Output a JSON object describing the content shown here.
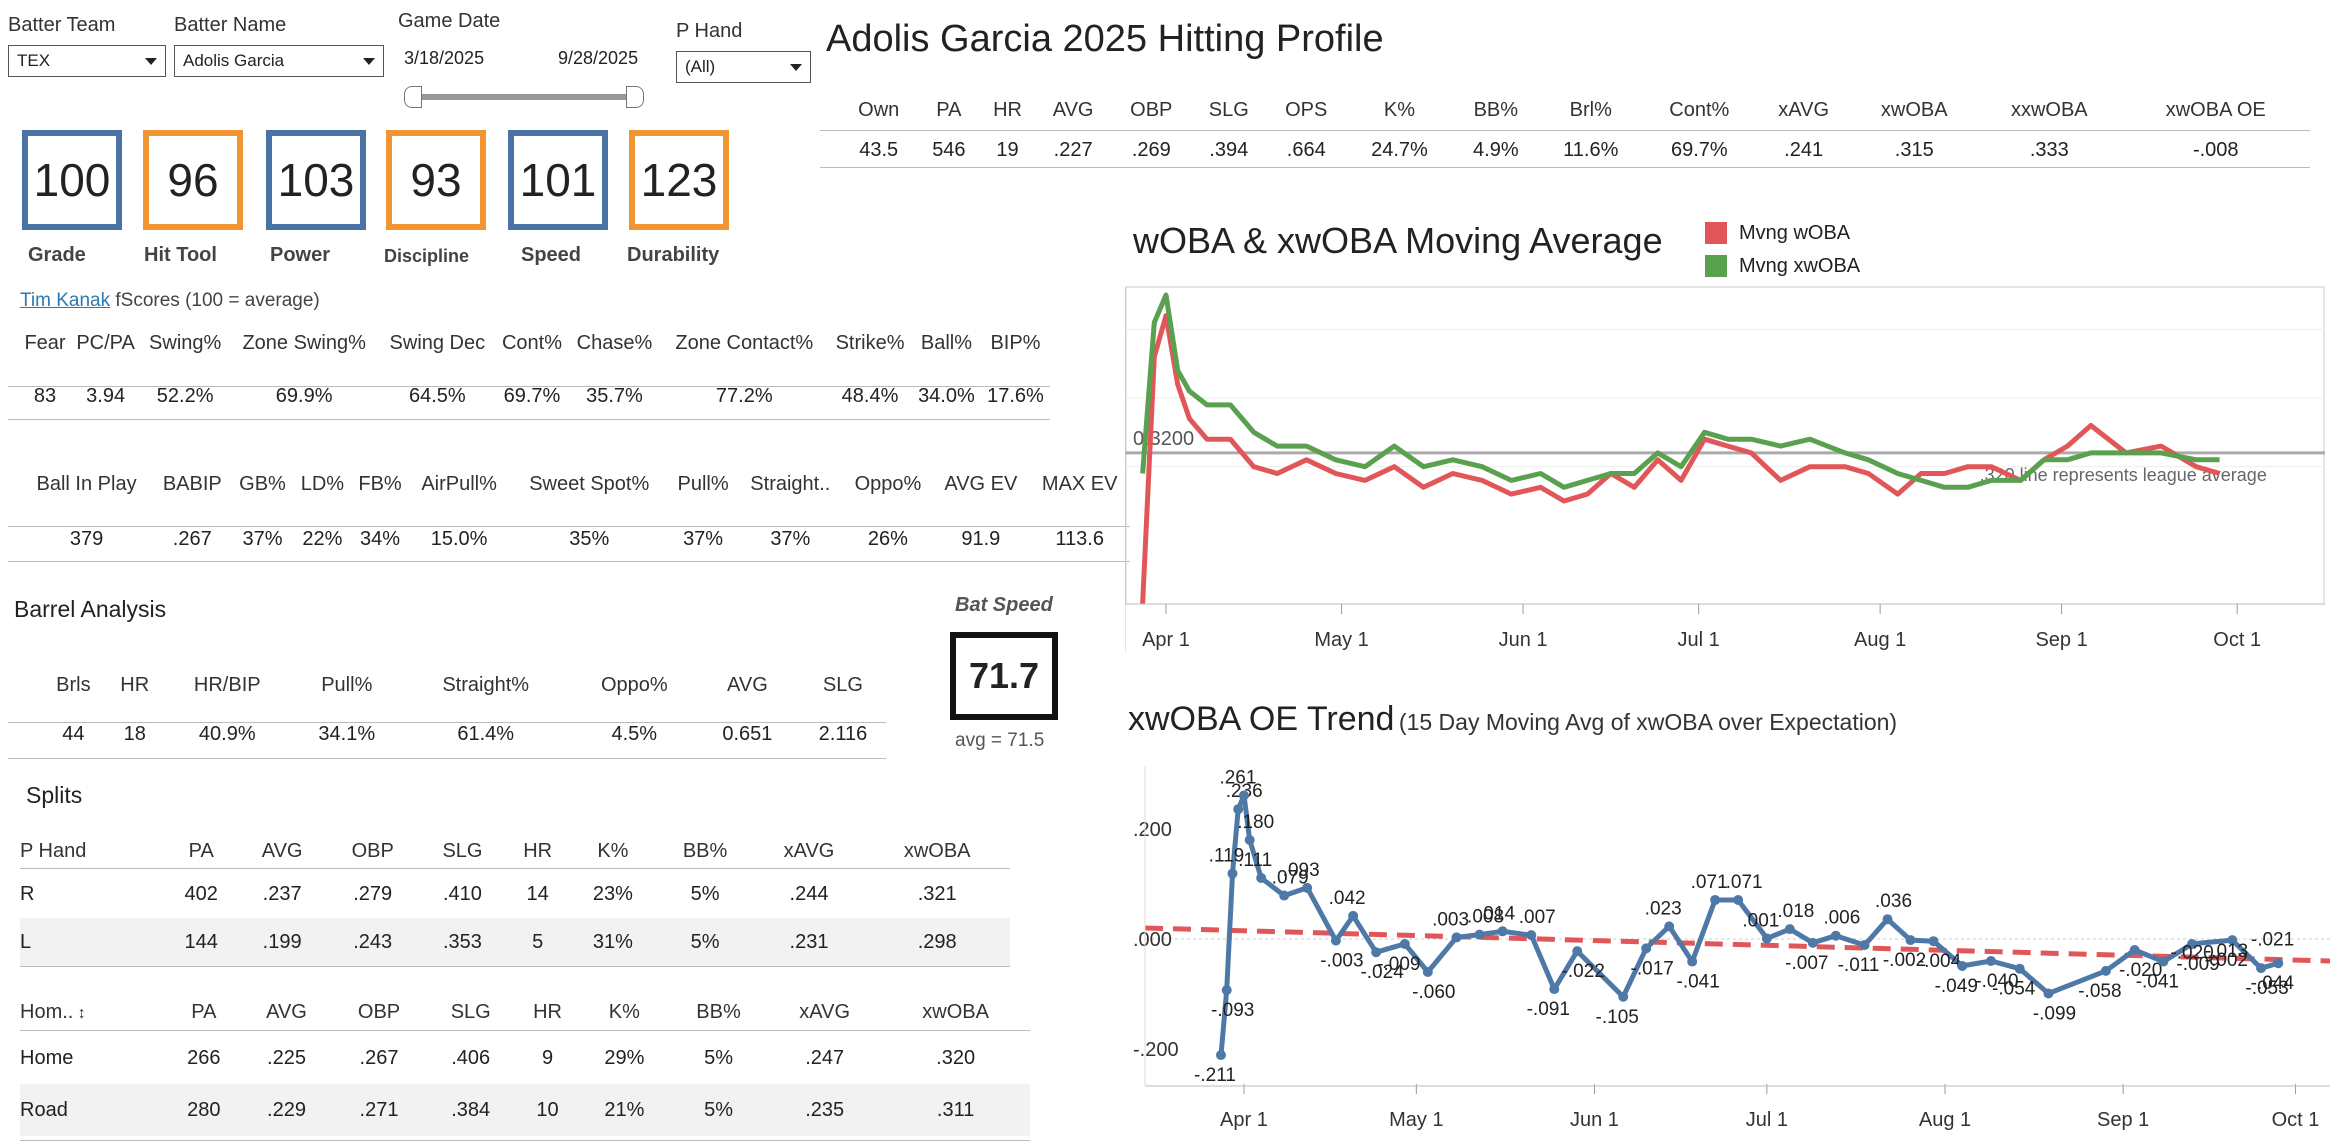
{
  "filters": {
    "batter_team_label": "Batter Team",
    "batter_team_value": "TEX",
    "batter_name_label": "Batter Name",
    "batter_name_value": "Adolis Garcia",
    "game_date_label": "Game Date",
    "date_start": "3/18/2025",
    "date_end": "9/28/2025",
    "p_hand_label": "P Hand",
    "p_hand_value": "(All)"
  },
  "grades": [
    {
      "value": "100",
      "label": "Grade",
      "color": "#4a72a4"
    },
    {
      "value": "96",
      "label": "Hit Tool",
      "color": "#f19434"
    },
    {
      "value": "103",
      "label": "Power",
      "color": "#4a72a4"
    },
    {
      "value": "93",
      "label": "Discipline",
      "color": "#f19434"
    },
    {
      "value": "101",
      "label": "Speed",
      "color": "#4a72a4"
    },
    {
      "value": "123",
      "label": "Durability",
      "color": "#f19434"
    }
  ],
  "attribution": {
    "link": "Tim Kanak",
    "text": "fScores (100 = average)"
  },
  "plate_discipline": {
    "headers": [
      "Fear",
      "PC/PA",
      "Swing%",
      "Zone Swing%",
      "Swing Dec",
      "Cont%",
      "Chase%",
      "Zone Contact%",
      "Strike%",
      "Ball%",
      "BIP%"
    ],
    "values": [
      "83",
      "3.94",
      "52.2%",
      "69.9%",
      "64.5%",
      "69.7%",
      "35.7%",
      "77.2%",
      "48.4%",
      "34.0%",
      "17.6%"
    ]
  },
  "batted_ball": {
    "headers": [
      "Ball In Play",
      "BABIP",
      "GB%",
      "LD%",
      "FB%",
      "AirPull%",
      "Sweet Spot%",
      "Pull%",
      "Straight..",
      "Oppo%",
      "AVG EV",
      "MAX EV"
    ],
    "values": [
      "379",
      ".267",
      "37%",
      "22%",
      "34%",
      "15.0%",
      "35%",
      "37%",
      "37%",
      "26%",
      "91.9",
      "113.6"
    ]
  },
  "barrel": {
    "title": "Barrel Analysis",
    "headers": [
      "Brls",
      "HR",
      "HR/BIP",
      "Pull%",
      "Straight%",
      "Oppo%",
      "AVG",
      "SLG"
    ],
    "values": [
      "44",
      "18",
      "40.9%",
      "34.1%",
      "61.4%",
      "4.5%",
      "0.651",
      "2.116"
    ]
  },
  "bat_speed": {
    "label": "Bat Speed",
    "value": "71.7",
    "avg": "avg = 71.5"
  },
  "splits": {
    "title": "Splits",
    "hand_headers": [
      "P Hand",
      "PA",
      "AVG",
      "OBP",
      "SLG",
      "HR",
      "K%",
      "BB%",
      "xAVG",
      "xwOBA"
    ],
    "hand_rows": [
      [
        "R",
        "402",
        ".237",
        ".279",
        ".410",
        "14",
        "23%",
        "5%",
        ".244",
        ".321"
      ],
      [
        "L",
        "144",
        ".199",
        ".243",
        ".353",
        "5",
        "31%",
        "5%",
        ".231",
        ".298"
      ]
    ],
    "home_headers": [
      "Hom..",
      "PA",
      "AVG",
      "OBP",
      "SLG",
      "HR",
      "K%",
      "BB%",
      "xAVG",
      "xwOBA"
    ],
    "home_sort_icon": "sort-icon",
    "home_rows": [
      [
        "Home",
        "266",
        ".225",
        ".267",
        ".406",
        "9",
        "29%",
        "5%",
        ".247",
        ".320"
      ],
      [
        "Road",
        "280",
        ".229",
        ".271",
        ".384",
        "10",
        "21%",
        "5%",
        ".235",
        ".311"
      ]
    ]
  },
  "profile": {
    "title": "Adolis Garcia 2025 Hitting Profile",
    "headers": [
      "Own",
      "PA",
      "HR",
      "AVG",
      "OBP",
      "SLG",
      "OPS",
      "K%",
      "BB%",
      "Brl%",
      "Cont%",
      "xAVG",
      "xwOBA",
      "xxwOBA",
      "xwOBA OE"
    ],
    "values": [
      "43.5",
      "546",
      "19",
      ".227",
      ".269",
      ".394",
      ".664",
      "24.7%",
      "4.9%",
      "11.6%",
      "69.7%",
      ".241",
      ".315",
      ".333",
      "-.008"
    ]
  },
  "chart_data": [
    {
      "type": "line",
      "title": "wOBA & xwOBA Moving Average",
      "legend_position": "top-right",
      "x_tick_labels": [
        "Apr 1",
        "May 1",
        "Jun 1",
        "Jul 1",
        "Aug 1",
        "Sep 1",
        "Oct 1"
      ],
      "reference_line": {
        "value": 0.32,
        "label": "0.3200",
        "note": ".320 line represents league average"
      },
      "grid": true,
      "series": [
        {
          "name": "Mvng wOBA",
          "color": "#e15759",
          "x": [
            "2025-03-28",
            "2025-03-30",
            "2025-04-01",
            "2025-04-03",
            "2025-04-05",
            "2025-04-08",
            "2025-04-12",
            "2025-04-16",
            "2025-04-20",
            "2025-04-25",
            "2025-04-30",
            "2025-05-05",
            "2025-05-10",
            "2025-05-15",
            "2025-05-20",
            "2025-05-25",
            "2025-05-30",
            "2025-06-04",
            "2025-06-08",
            "2025-06-12",
            "2025-06-16",
            "2025-06-20",
            "2025-06-24",
            "2025-06-28",
            "2025-07-02",
            "2025-07-06",
            "2025-07-10",
            "2025-07-15",
            "2025-07-20",
            "2025-07-26",
            "2025-07-30",
            "2025-08-04",
            "2025-08-08",
            "2025-08-12",
            "2025-08-16",
            "2025-08-20",
            "2025-08-25",
            "2025-08-29",
            "2025-09-02",
            "2025-09-06",
            "2025-09-12",
            "2025-09-18",
            "2025-09-24",
            "2025-09-28"
          ],
          "y": [
            0.1,
            0.46,
            0.52,
            0.42,
            0.37,
            0.34,
            0.34,
            0.3,
            0.29,
            0.31,
            0.29,
            0.28,
            0.3,
            0.27,
            0.29,
            0.28,
            0.26,
            0.27,
            0.25,
            0.26,
            0.29,
            0.27,
            0.31,
            0.28,
            0.34,
            0.33,
            0.32,
            0.28,
            0.3,
            0.3,
            0.29,
            0.26,
            0.29,
            0.29,
            0.3,
            0.3,
            0.28,
            0.31,
            0.33,
            0.36,
            0.32,
            0.33,
            0.3,
            0.29
          ]
        },
        {
          "name": "Mvng xwOBA",
          "color": "#59a14f",
          "x": [
            "2025-03-28",
            "2025-03-30",
            "2025-04-01",
            "2025-04-03",
            "2025-04-05",
            "2025-04-08",
            "2025-04-12",
            "2025-04-16",
            "2025-04-20",
            "2025-04-25",
            "2025-04-30",
            "2025-05-05",
            "2025-05-10",
            "2025-05-15",
            "2025-05-20",
            "2025-05-25",
            "2025-05-30",
            "2025-06-04",
            "2025-06-08",
            "2025-06-12",
            "2025-06-16",
            "2025-06-20",
            "2025-06-24",
            "2025-06-28",
            "2025-07-02",
            "2025-07-06",
            "2025-07-10",
            "2025-07-15",
            "2025-07-20",
            "2025-07-26",
            "2025-07-30",
            "2025-08-04",
            "2025-08-08",
            "2025-08-12",
            "2025-08-16",
            "2025-08-20",
            "2025-08-25",
            "2025-08-29",
            "2025-09-02",
            "2025-09-06",
            "2025-09-12",
            "2025-09-18",
            "2025-09-24",
            "2025-09-28"
          ],
          "y": [
            0.29,
            0.51,
            0.55,
            0.44,
            0.41,
            0.39,
            0.39,
            0.35,
            0.33,
            0.33,
            0.31,
            0.3,
            0.33,
            0.3,
            0.31,
            0.3,
            0.28,
            0.29,
            0.27,
            0.28,
            0.29,
            0.29,
            0.32,
            0.3,
            0.35,
            0.34,
            0.34,
            0.33,
            0.34,
            0.32,
            0.31,
            0.29,
            0.28,
            0.27,
            0.27,
            0.28,
            0.28,
            0.31,
            0.31,
            0.32,
            0.32,
            0.32,
            0.31,
            0.31
          ]
        }
      ]
    },
    {
      "type": "line",
      "title": "xwOBA OE Trend",
      "subtitle": "(15 Day Moving Avg of xwOBA over Expectation)",
      "x_tick_labels": [
        "Apr 1",
        "May 1",
        "Jun 1",
        "Jul 1",
        "Aug 1",
        "Sep 1",
        "Oct 1"
      ],
      "y_tick_labels": [
        ".200",
        ".000",
        "-.200"
      ],
      "ylim": [
        -0.24,
        0.29
      ],
      "series": [
        {
          "name": "xwOBA OE",
          "color": "#4e79a7",
          "x": [
            "2025-03-28",
            "2025-03-29",
            "2025-03-30",
            "2025-03-31",
            "2025-04-01",
            "2025-04-02",
            "2025-04-04",
            "2025-04-08",
            "2025-04-12",
            "2025-04-17",
            "2025-04-20",
            "2025-04-24",
            "2025-04-29",
            "2025-05-03",
            "2025-05-08",
            "2025-05-12",
            "2025-05-16",
            "2025-05-21",
            "2025-05-25",
            "2025-05-29",
            "2025-06-06",
            "2025-06-10",
            "2025-06-14",
            "2025-06-18",
            "2025-06-22",
            "2025-06-26",
            "2025-07-01",
            "2025-07-05",
            "2025-07-09",
            "2025-07-13",
            "2025-07-18",
            "2025-07-22",
            "2025-07-26",
            "2025-07-30",
            "2025-08-04",
            "2025-08-09",
            "2025-08-14",
            "2025-08-19",
            "2025-08-29",
            "2025-09-03",
            "2025-09-08",
            "2025-09-13",
            "2025-09-20",
            "2025-09-25",
            "2025-09-28"
          ],
          "y": [
            -0.211,
            -0.093,
            0.119,
            0.236,
            0.261,
            0.18,
            0.111,
            0.079,
            0.093,
            -0.003,
            0.042,
            -0.024,
            -0.009,
            -0.06,
            0.003,
            0.008,
            0.014,
            0.007,
            -0.091,
            -0.022,
            -0.105,
            -0.017,
            0.023,
            -0.041,
            0.071,
            0.071,
            0.001,
            0.018,
            -0.007,
            0.006,
            -0.011,
            0.036,
            -0.002,
            -0.004,
            -0.049,
            -0.04,
            -0.054,
            -0.099,
            -0.058,
            -0.02,
            -0.041,
            -0.009,
            -0.002,
            -0.053,
            -0.044
          ],
          "labels": [
            "-.211",
            "-.093",
            ".119",
            ".236",
            ".261",
            ".180",
            ".111",
            ".079",
            ".093",
            "-.003",
            ".042",
            "-.024",
            "-.009",
            "-.060",
            ".003",
            ".008",
            ".014",
            ".007",
            "-.091",
            "-.022",
            "-.105",
            "-.017",
            ".023",
            "-.041",
            ".071",
            ".071",
            ".001",
            ".018",
            "-.007",
            ".006",
            "-.011",
            ".036",
            "-.002",
            "-.004",
            "-.049",
            "-.040",
            "-.054",
            "-.099",
            "-.058",
            "-.020",
            "-.041",
            "-.009",
            "-.002",
            "-.053",
            "-.044"
          ]
        }
      ],
      "extra_labels": [
        "-.020",
        "-.013",
        "-.021"
      ],
      "trend_line": {
        "color": "#e15759",
        "style": "dashed",
        "start": 0.02,
        "end": -0.04
      }
    }
  ]
}
